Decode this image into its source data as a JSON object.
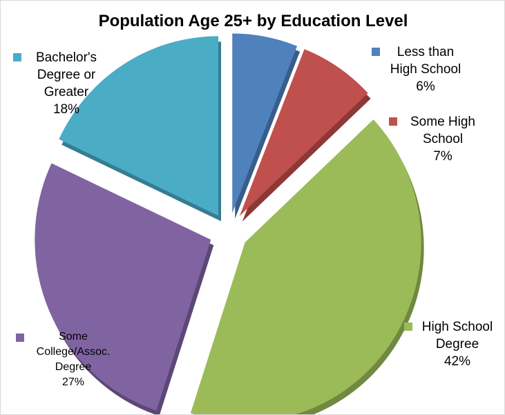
{
  "chart_data": {
    "type": "pie",
    "title": "Population Age 25+ by Education Level",
    "slices": [
      {
        "name": "Less than High School",
        "value": 6,
        "label": "6%",
        "color": "#4F81BD",
        "side": "#385D8A",
        "exploded": true
      },
      {
        "name": "Some High School",
        "value": 7,
        "label": "7%",
        "color": "#C0504D",
        "side": "#8C3836",
        "exploded": true
      },
      {
        "name": "High School Degree",
        "value": 42,
        "label": "42%",
        "color": "#9BBB59",
        "side": "#71893F",
        "exploded": true
      },
      {
        "name": "Some College/Assoc. Degree",
        "value": 27,
        "label": "27%",
        "color": "#8064A2",
        "side": "#5C4776",
        "exploded": true
      },
      {
        "name": "Bachelor's Degree or Greater",
        "value": 18,
        "label": "18%",
        "color": "#4BACC6",
        "side": "#357D91",
        "exploded": true
      }
    ],
    "legend": "labels beside slices"
  },
  "labels": {
    "less_than_hs": {
      "line1": "Less than",
      "line2": "High School",
      "pct": "6%"
    },
    "some_hs": {
      "line1": "Some High",
      "line2": "School",
      "pct": "7%"
    },
    "hs_degree": {
      "line1": "High School",
      "line2": "Degree",
      "pct": "42%"
    },
    "some_college": {
      "line1": "Some",
      "line2": "College/Assoc.",
      "line3": "Degree",
      "pct": "27%"
    },
    "bachelors": {
      "line1": "Bachelor's",
      "line2": "Degree or",
      "line3": "Greater",
      "pct": "18%"
    }
  }
}
